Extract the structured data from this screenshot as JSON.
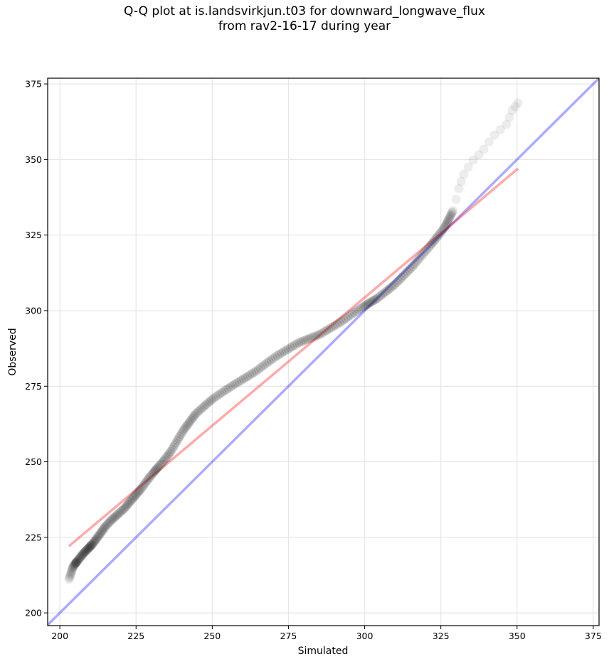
{
  "chart_data": {
    "type": "scatter",
    "title_lines": [
      "Q-Q plot at is.landsvirkjun.t03 for downward_longwave_flux",
      "from rav2-16-17 during year"
    ],
    "xlabel": "Simulated",
    "ylabel": "Observed",
    "xlim": [
      196.0,
      376.9
    ],
    "ylim": [
      195.8,
      376.9
    ],
    "xticks": [
      200,
      225,
      250,
      275,
      300,
      325,
      350,
      375
    ],
    "yticks": [
      200,
      225,
      250,
      275,
      300,
      325,
      350,
      375
    ],
    "grid": true,
    "series": [
      {
        "name": "quantiles",
        "kind": "scatter",
        "color": "#000000",
        "x": [
          203.0,
          203.6,
          204.2,
          205.0,
          205.6,
          206.8,
          208.0,
          209.4,
          210.7,
          212.0,
          213.5,
          215.0,
          217.0,
          219.0,
          221.2,
          223.0,
          224.8,
          226.6,
          228.6,
          230.6,
          232.2,
          234.3,
          236.4,
          238.5,
          240.6,
          242.6,
          244.6,
          247.5,
          250.4,
          253.9,
          257.4,
          260.9,
          264.4,
          267.9,
          271.4,
          274.9,
          278.4,
          281.9,
          285.4,
          288.9,
          292.4,
          295.9,
          299.4,
          301.7,
          304.0,
          307.0,
          309.9,
          312.8,
          315.7,
          318.6,
          321.6,
          323.9,
          326.2,
          327.6,
          329.0,
          330.0,
          330.9,
          331.7,
          332.5,
          334.0,
          335.6,
          337.4,
          339.1,
          340.8,
          342.6,
          344.5,
          346.5,
          347.5,
          348.4,
          349.4,
          350.3
        ],
        "y": [
          211.1,
          213.0,
          215.0,
          216.2,
          217.0,
          218.5,
          220.0,
          221.4,
          222.8,
          224.5,
          226.6,
          228.7,
          230.8,
          232.6,
          234.6,
          236.8,
          238.9,
          241.0,
          243.8,
          246.3,
          248.2,
          250.6,
          253.4,
          257.0,
          260.5,
          263.2,
          265.9,
          268.5,
          271.0,
          273.4,
          275.7,
          277.8,
          280.0,
          282.7,
          285.2,
          287.3,
          289.4,
          290.8,
          292.2,
          294.3,
          296.4,
          298.9,
          301.2,
          302.6,
          304.0,
          306.3,
          308.7,
          311.6,
          314.6,
          318.1,
          321.6,
          324.5,
          327.5,
          330.2,
          333.1,
          336.8,
          340.4,
          342.7,
          345.1,
          347.5,
          349.8,
          351.6,
          353.4,
          355.8,
          358.1,
          359.9,
          361.6,
          364.0,
          366.3,
          367.5,
          368.7
        ]
      },
      {
        "name": "linear fit",
        "kind": "line",
        "color": "#ff0000",
        "x": [
          203.0,
          350.3
        ],
        "y": [
          222.1,
          347.0
        ]
      },
      {
        "name": "1:1 line",
        "kind": "line",
        "color": "#0000ff",
        "x": [
          196.0,
          376.9
        ],
        "y": [
          196.0,
          376.9
        ]
      }
    ]
  }
}
